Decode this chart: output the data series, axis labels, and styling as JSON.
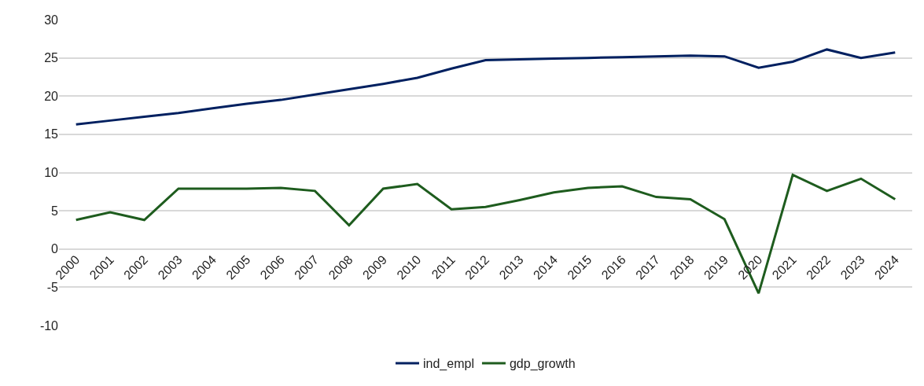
{
  "chart_data": {
    "type": "line",
    "categories": [
      "2000",
      "2001",
      "2002",
      "2003",
      "2004",
      "2005",
      "2006",
      "2007",
      "2008",
      "2009",
      "2010",
      "2011",
      "2012",
      "2013",
      "2014",
      "2015",
      "2016",
      "2017",
      "2018",
      "2019",
      "2020",
      "2021",
      "2022",
      "2023",
      "2024"
    ],
    "series": [
      {
        "name": "ind_empl",
        "color": "#002060",
        "values": [
          16.3,
          16.8,
          17.3,
          17.8,
          18.4,
          19.0,
          19.5,
          20.2,
          20.9,
          21.6,
          22.4,
          23.6,
          24.7,
          24.8,
          24.9,
          25.0,
          25.1,
          25.2,
          25.3,
          25.2,
          23.7,
          24.5,
          26.1,
          25.0,
          25.7
        ]
      },
      {
        "name": "gdp_growth",
        "color": "#1e5c1e",
        "values": [
          3.8,
          4.8,
          3.8,
          7.9,
          7.9,
          7.9,
          8.0,
          7.6,
          3.1,
          7.9,
          8.5,
          5.2,
          5.5,
          6.4,
          7.4,
          8.0,
          8.2,
          6.8,
          6.5,
          3.9,
          -5.8,
          9.7,
          7.6,
          9.2,
          6.5
        ]
      }
    ],
    "ylim": [
      -10,
      30
    ],
    "yticks": [
      -10,
      -5,
      0,
      5,
      10,
      15,
      20,
      25,
      30
    ],
    "grid": "y",
    "legend": "bottom",
    "marker": "none",
    "line_style": "solid"
  }
}
